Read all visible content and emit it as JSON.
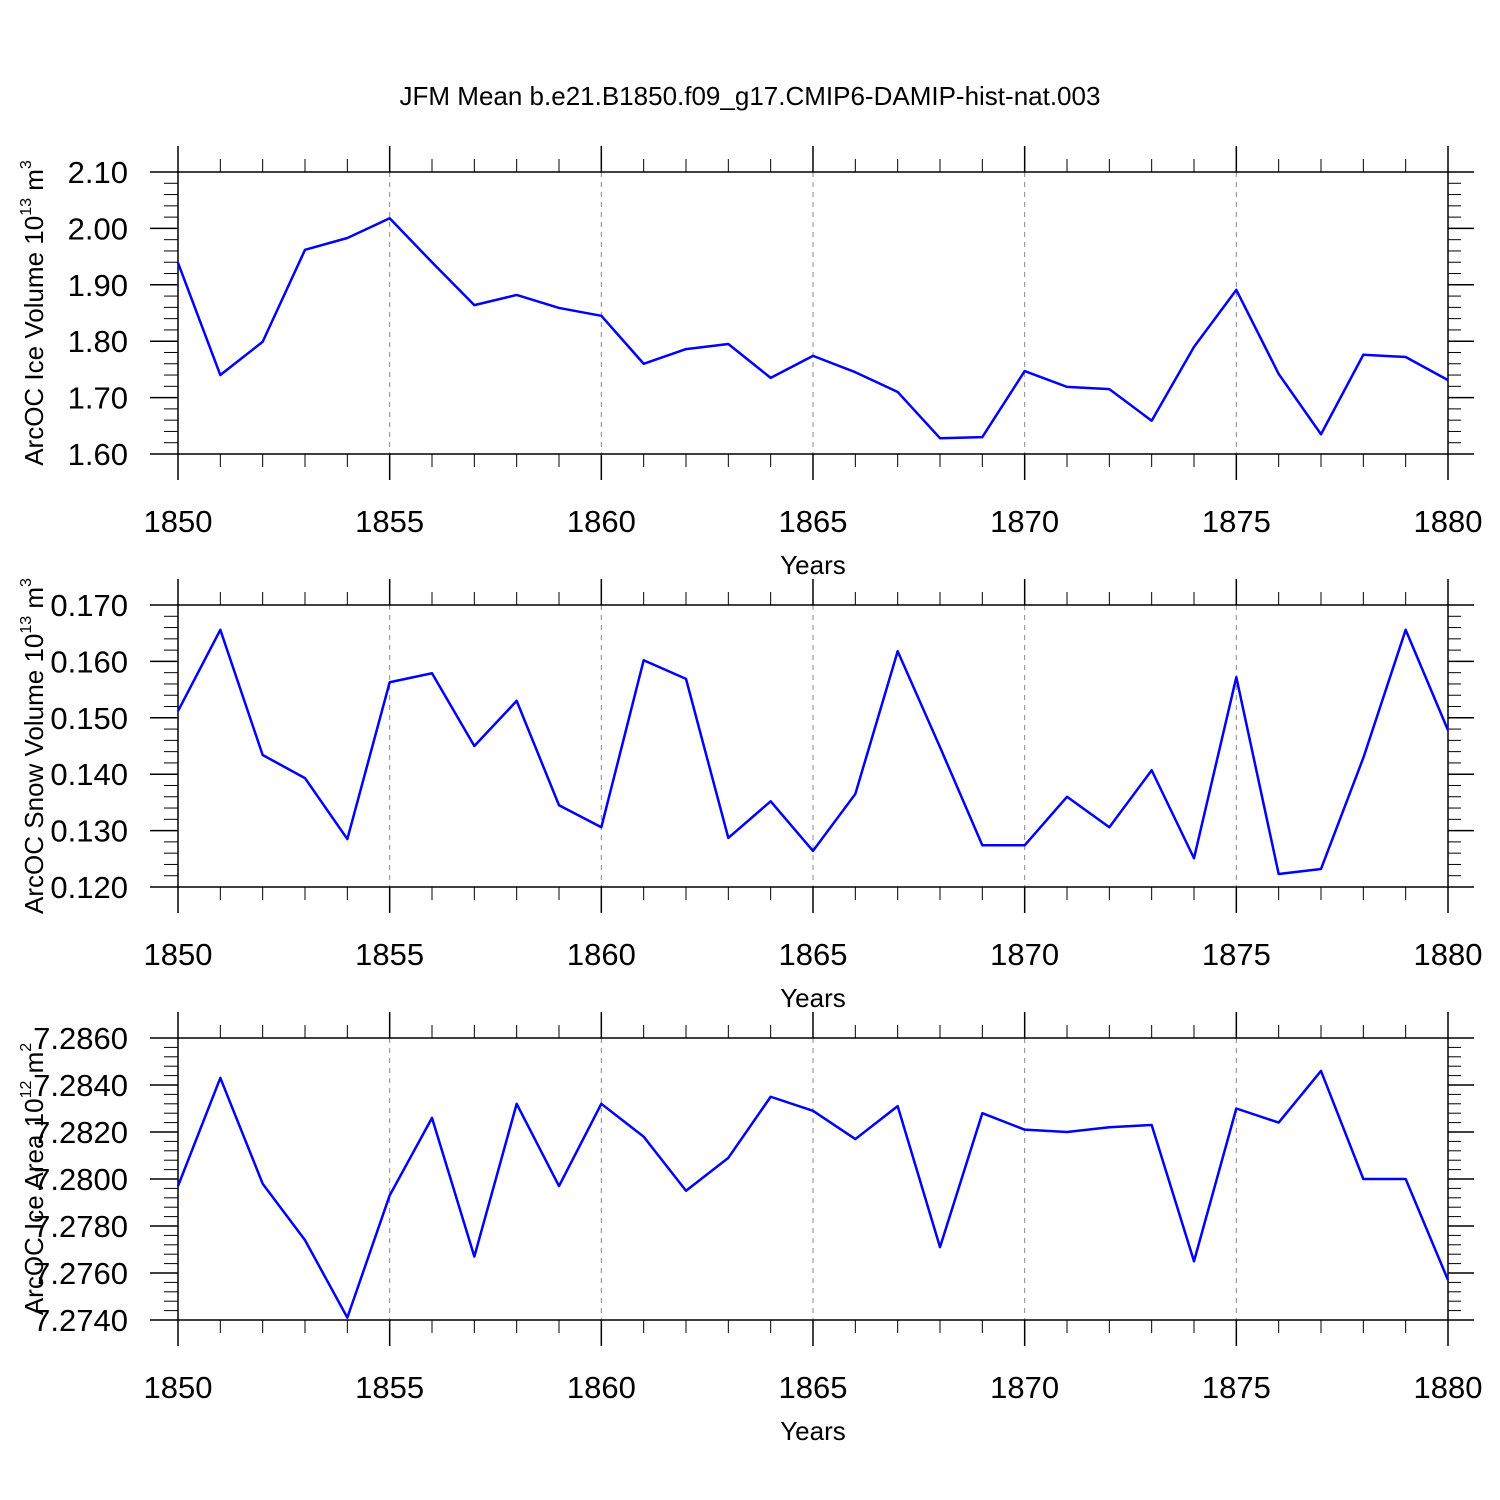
{
  "chart_data": [
    {
      "type": "line",
      "title": "JFM Mean b.e21.B1850.f09_g17.CMIP6-DAMIP-hist-nat.003",
      "ylabel": [
        "ArcOC Ice Volume 10",
        "13",
        " m",
        "3"
      ],
      "xlabel": "Years",
      "color": "#0000ff",
      "x": [
        1850,
        1851,
        1852,
        1853,
        1854,
        1855,
        1856,
        1857,
        1858,
        1859,
        1860,
        1861,
        1862,
        1863,
        1864,
        1865,
        1866,
        1867,
        1868,
        1869,
        1870,
        1871,
        1872,
        1873,
        1874,
        1875,
        1876,
        1877,
        1878,
        1879,
        1880
      ],
      "values": [
        1.939,
        1.74,
        1.799,
        1.962,
        1.983,
        2.018,
        1.94,
        1.864,
        1.882,
        1.859,
        1.845,
        1.76,
        1.786,
        1.795,
        1.735,
        1.774,
        1.745,
        1.71,
        1.628,
        1.63,
        1.747,
        1.719,
        1.715,
        1.659,
        1.79,
        1.891,
        1.742,
        1.635,
        1.776,
        1.772,
        1.731
      ],
      "xlim": [
        1850,
        1880
      ],
      "xticks": [
        1850,
        1855,
        1860,
        1865,
        1870,
        1875,
        1880
      ],
      "ylim": [
        1.6,
        2.1
      ],
      "yticks": [
        {
          "value": 1.6,
          "label": "1.60"
        },
        {
          "value": 1.7,
          "label": "1.70"
        },
        {
          "value": 1.8,
          "label": "1.80"
        },
        {
          "value": 1.9,
          "label": "1.90"
        },
        {
          "value": 2.0,
          "label": "2.00"
        },
        {
          "value": 2.1,
          "label": "2.10"
        }
      ],
      "grid": "x"
    },
    {
      "type": "line",
      "ylabel": [
        "ArcOC Snow Volume 10",
        "13",
        " m",
        "3"
      ],
      "xlabel": "Years",
      "color": "#0000ff",
      "x": [
        1850,
        1851,
        1852,
        1853,
        1854,
        1855,
        1856,
        1857,
        1858,
        1859,
        1860,
        1861,
        1862,
        1863,
        1864,
        1865,
        1866,
        1867,
        1868,
        1869,
        1870,
        1871,
        1872,
        1873,
        1874,
        1875,
        1876,
        1877,
        1878,
        1879,
        1880
      ],
      "values": [
        0.1512,
        0.1656,
        0.1434,
        0.1393,
        0.1285,
        0.1563,
        0.1579,
        0.145,
        0.153,
        0.1345,
        0.1306,
        0.1602,
        0.1569,
        0.1287,
        0.1352,
        0.1264,
        0.1365,
        0.1618,
        0.1448,
        0.1274,
        0.1274,
        0.136,
        0.1306,
        0.1407,
        0.1251,
        0.1572,
        0.1223,
        0.1232,
        0.1429,
        0.1656,
        0.1478
      ],
      "xlim": [
        1850,
        1880
      ],
      "xticks": [
        1850,
        1855,
        1860,
        1865,
        1870,
        1875,
        1880
      ],
      "ylim": [
        0.12,
        0.17
      ],
      "yticks": [
        {
          "value": 0.12,
          "label": "0.120"
        },
        {
          "value": 0.13,
          "label": "0.130"
        },
        {
          "value": 0.14,
          "label": "0.140"
        },
        {
          "value": 0.15,
          "label": "0.150"
        },
        {
          "value": 0.16,
          "label": "0.160"
        },
        {
          "value": 0.17,
          "label": "0.170"
        }
      ],
      "grid": "x"
    },
    {
      "type": "line",
      "ylabel": [
        "ArcOC Ice Area 10",
        "12",
        " m",
        "2"
      ],
      "xlabel": "Years",
      "color": "#0000ff",
      "x": [
        1850,
        1851,
        1852,
        1853,
        1854,
        1855,
        1856,
        1857,
        1858,
        1859,
        1860,
        1861,
        1862,
        1863,
        1864,
        1865,
        1866,
        1867,
        1868,
        1869,
        1870,
        1871,
        1872,
        1873,
        1874,
        1875,
        1876,
        1877,
        1878,
        1879,
        1880
      ],
      "values": [
        7.2797,
        7.2843,
        7.2798,
        7.2774,
        7.2741,
        7.2793,
        7.2826,
        7.2767,
        7.2832,
        7.2797,
        7.2832,
        7.2818,
        7.2795,
        7.2809,
        7.2835,
        7.2829,
        7.2817,
        7.2831,
        7.2771,
        7.2828,
        7.2821,
        7.282,
        7.2822,
        7.2823,
        7.2765,
        7.283,
        7.2824,
        7.2846,
        7.28,
        7.28,
        7.2757
      ],
      "xlim": [
        1850,
        1880
      ],
      "xticks": [
        1850,
        1855,
        1860,
        1865,
        1870,
        1875,
        1880
      ],
      "ylim": [
        7.274,
        7.286
      ],
      "yticks": [
        {
          "value": 7.274,
          "label": "7.2740"
        },
        {
          "value": 7.276,
          "label": "7.2760"
        },
        {
          "value": 7.278,
          "label": "7.2780"
        },
        {
          "value": 7.28,
          "label": "7.2800"
        },
        {
          "value": 7.282,
          "label": "7.2820"
        },
        {
          "value": 7.284,
          "label": "7.2840"
        },
        {
          "value": 7.286,
          "label": "7.2860"
        }
      ],
      "grid": "x"
    }
  ]
}
